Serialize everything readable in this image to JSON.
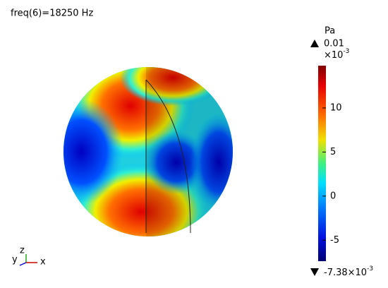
{
  "title": "freq(6)=18250 Hz",
  "colorbar": {
    "unit": "Pa",
    "max_label": "0.01",
    "multiplier_base": "×10",
    "multiplier_exponent": "-3",
    "min_label": "-7.38×10",
    "min_exponent": "-3",
    "range": [
      -7.38,
      14.8
    ],
    "ticks": [
      -5,
      0,
      5,
      10
    ]
  },
  "triad": {
    "x": "x",
    "y": "y",
    "z": "z"
  }
}
